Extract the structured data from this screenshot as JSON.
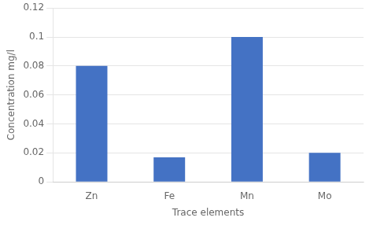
{
  "chart_data": {
    "type": "bar",
    "categories": [
      "Zn",
      "Fe",
      "Mn",
      "Mo"
    ],
    "values": [
      0.08,
      0.017,
      0.1,
      0.02
    ],
    "color": "#4472C4",
    "xlabel": "Trace elements",
    "ylabel": "Concentration mg/l",
    "ylim": [
      0,
      0.12
    ],
    "yticks": [
      0,
      0.02,
      0.04,
      0.06,
      0.08,
      0.1,
      0.12
    ],
    "grid": true
  }
}
